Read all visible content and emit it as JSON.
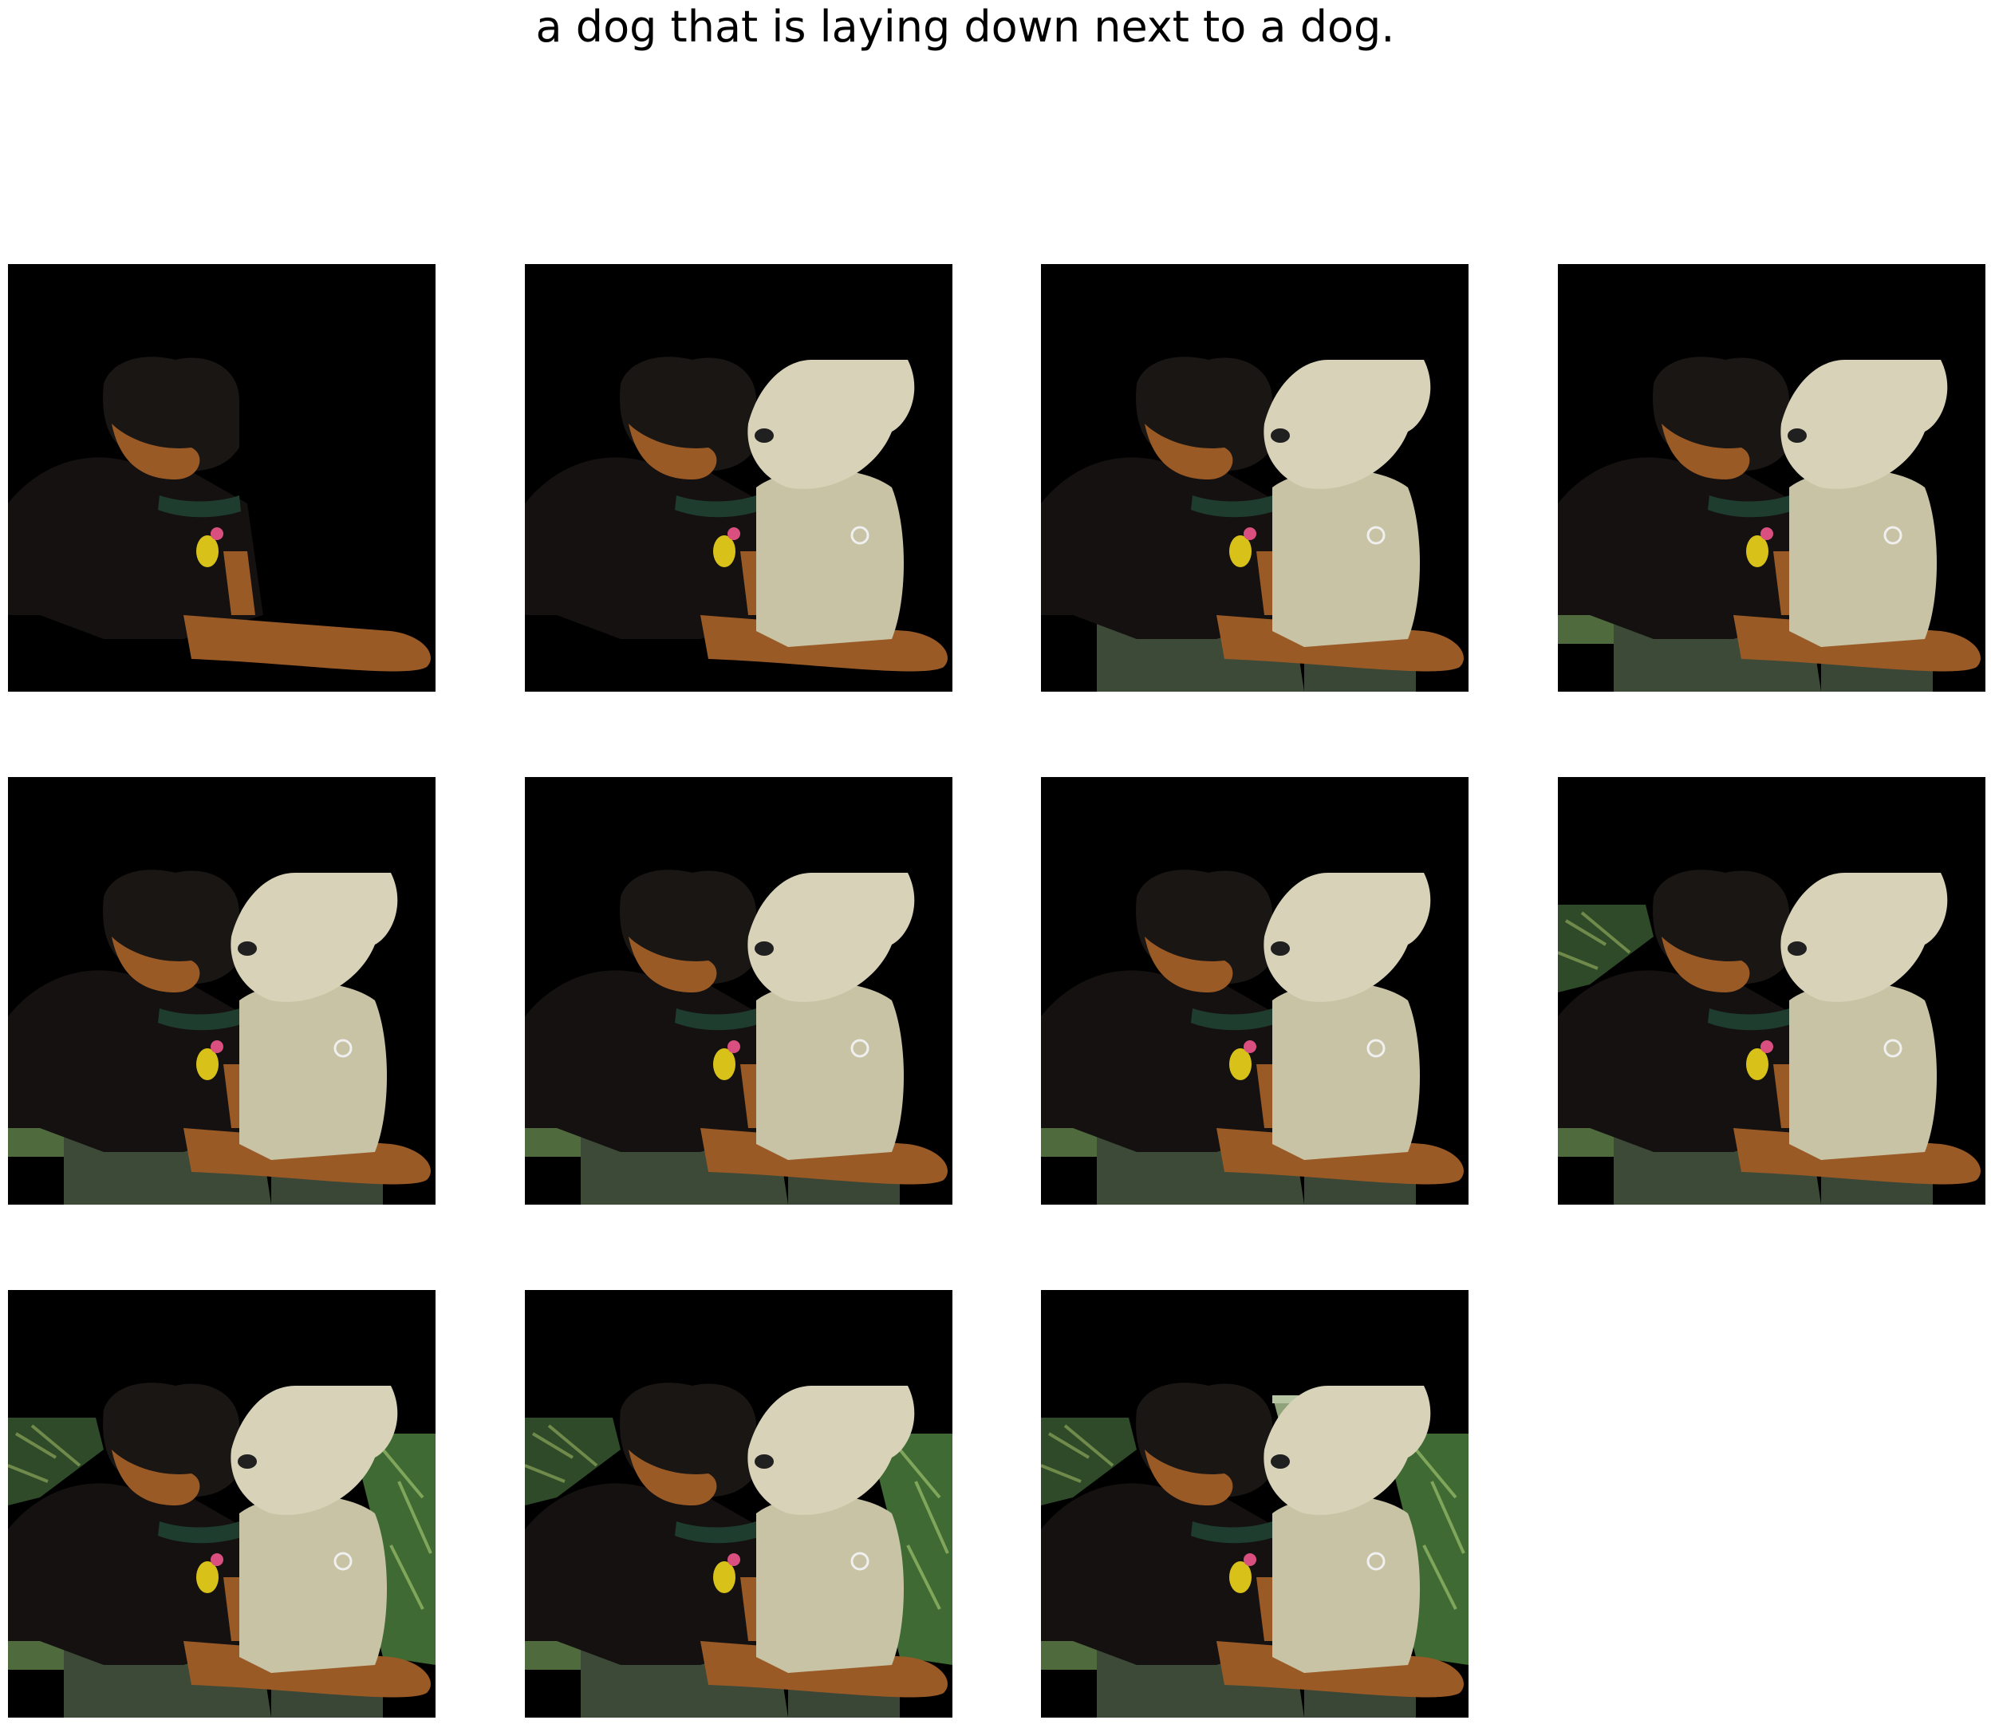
{
  "caption": "a dog that is laying down next to a dog.",
  "panels": [
    {
      "id": 1,
      "layers": [
        "rottweiler"
      ]
    },
    {
      "id": 2,
      "layers": [
        "rottweiler",
        "white-dog"
      ]
    },
    {
      "id": 3,
      "layers": [
        "rottweiler",
        "white-dog",
        "ground"
      ]
    },
    {
      "id": 4,
      "layers": [
        "rottweiler",
        "white-dog",
        "ground",
        "grass-left"
      ]
    },
    {
      "id": 5,
      "layers": [
        "rottweiler",
        "white-dog",
        "ground",
        "grass-left"
      ]
    },
    {
      "id": 6,
      "layers": [
        "rottweiler",
        "white-dog",
        "ground",
        "grass-left"
      ]
    },
    {
      "id": 7,
      "layers": [
        "rottweiler",
        "white-dog",
        "ground",
        "grass-left"
      ]
    },
    {
      "id": 8,
      "layers": [
        "rottweiler",
        "white-dog",
        "ground",
        "grass-left",
        "plants-top-left"
      ]
    },
    {
      "id": 9,
      "layers": [
        "rottweiler",
        "white-dog",
        "ground",
        "grass-left",
        "plants-top-left",
        "foliage-right"
      ]
    },
    {
      "id": 10,
      "layers": [
        "rottweiler",
        "white-dog",
        "ground",
        "grass-left",
        "plants-top-left",
        "foliage-right"
      ]
    },
    {
      "id": 11,
      "layers": [
        "rottweiler",
        "white-dog",
        "ground",
        "grass-left",
        "plants-top-left",
        "foliage-right",
        "sky-trees"
      ]
    }
  ],
  "colors": {
    "background": "#000000",
    "rottweiler_black": "#141110",
    "rottweiler_tan": "#9a5a26",
    "white_dog": "#d8d3b8",
    "ground": "#3d4a38",
    "grass": "#4f6b3e",
    "collar": "#1f3d2e"
  }
}
